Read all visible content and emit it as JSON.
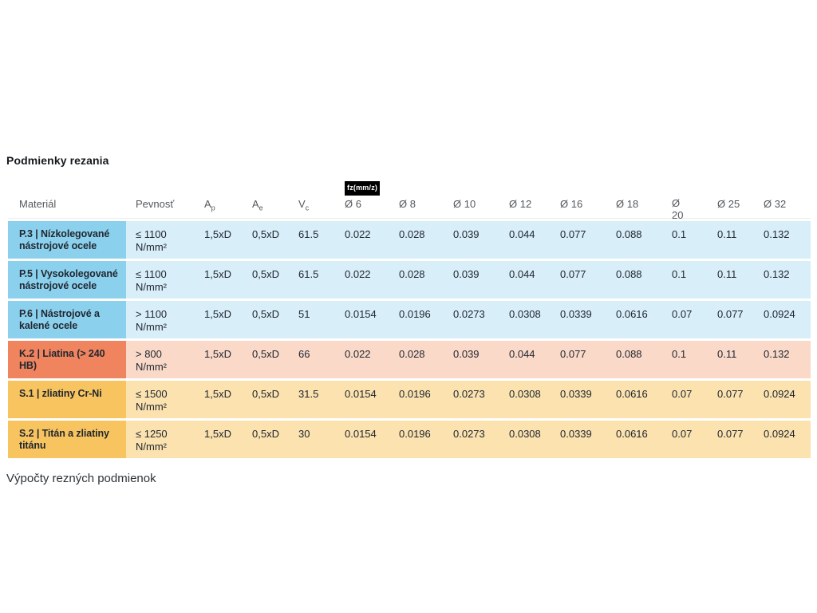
{
  "title": "Podmienky rezania",
  "caption": "Výpočty rezných podmienok",
  "colors": {
    "blue_strong": "#8BD1EE",
    "blue_light": "#D8EEF9",
    "coral_strong": "#F0845F",
    "coral_light": "#FAD9C9",
    "amber_strong": "#F7C45F",
    "amber_light": "#FBE2AF",
    "badge_bg": "#000000",
    "badge_text": "#FFFFFF",
    "header_text": "#54585C",
    "body_text": "#212730"
  },
  "table": {
    "columns": [
      {
        "label": "Materiál"
      },
      {
        "label": "Pevnosť"
      },
      {
        "label": "A",
        "sub": "p"
      },
      {
        "label": "A",
        "sub": "e"
      },
      {
        "label": "V",
        "sub": "c"
      },
      {
        "label": "Ø 6",
        "badge": "fz(mm/z)"
      },
      {
        "label": "Ø 8"
      },
      {
        "label": "Ø 10"
      },
      {
        "label": "Ø 12"
      },
      {
        "label": "Ø 16"
      },
      {
        "label": "Ø 18"
      },
      {
        "label": "Ø 20",
        "wrap": true
      },
      {
        "label": "Ø 25"
      },
      {
        "label": "Ø 32"
      }
    ],
    "rows": [
      {
        "theme": "blue",
        "material": "P.3 | Nízkolegované nástrojové ocele",
        "pevnost_limit": "≤ 1100",
        "pevnost_unit": "N/mm²",
        "ap": "1,5xD",
        "ae": "0,5xD",
        "vc": "61.5",
        "fz": [
          "0.022",
          "0.028",
          "0.039",
          "0.044",
          "0.077",
          "0.088",
          "0.1",
          "0.11",
          "0.132"
        ]
      },
      {
        "theme": "blue",
        "material": "P.5 | Vysokolegované nástrojové ocele",
        "pevnost_limit": "≤ 1100",
        "pevnost_unit": "N/mm²",
        "ap": "1,5xD",
        "ae": "0,5xD",
        "vc": "61.5",
        "fz": [
          "0.022",
          "0.028",
          "0.039",
          "0.044",
          "0.077",
          "0.088",
          "0.1",
          "0.11",
          "0.132"
        ]
      },
      {
        "theme": "blue",
        "material": "P.6 | Nástrojové a kalené ocele",
        "pevnost_limit": "> 1100",
        "pevnost_unit": "N/mm²",
        "ap": "1,5xD",
        "ae": "0,5xD",
        "vc": "51",
        "fz": [
          "0.0154",
          "0.0196",
          "0.0273",
          "0.0308",
          "0.0339",
          "0.0616",
          "0.07",
          "0.077",
          "0.0924"
        ]
      },
      {
        "theme": "coral",
        "material": "K.2 | Liatina (> 240 HB)",
        "pevnost_limit": "> 800",
        "pevnost_unit": "N/mm²",
        "ap": "1,5xD",
        "ae": "0,5xD",
        "vc": "66",
        "fz": [
          "0.022",
          "0.028",
          "0.039",
          "0.044",
          "0.077",
          "0.088",
          "0.1",
          "0.11",
          "0.132"
        ]
      },
      {
        "theme": "amber",
        "material": "S.1 | zliatiny Cr-Ni",
        "pevnost_limit": "≤ 1500",
        "pevnost_unit": "N/mm²",
        "ap": "1,5xD",
        "ae": "0,5xD",
        "vc": "31.5",
        "fz": [
          "0.0154",
          "0.0196",
          "0.0273",
          "0.0308",
          "0.0339",
          "0.0616",
          "0.07",
          "0.077",
          "0.0924"
        ]
      },
      {
        "theme": "amber",
        "material": "S.2 | Titán a zliatiny titánu",
        "pevnost_limit": "≤ 1250",
        "pevnost_unit": "N/mm²",
        "ap": "1,5xD",
        "ae": "0,5xD",
        "vc": "30",
        "fz": [
          "0.0154",
          "0.0196",
          "0.0273",
          "0.0308",
          "0.0339",
          "0.0616",
          "0.07",
          "0.077",
          "0.0924"
        ]
      }
    ]
  }
}
